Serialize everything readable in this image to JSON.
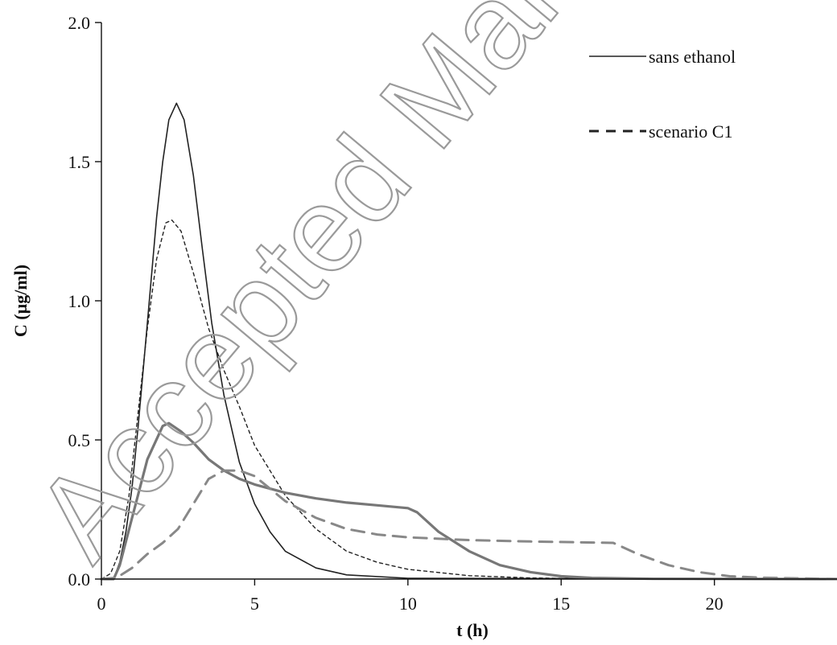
{
  "watermark": "Accepted Manuscript",
  "chart_data": {
    "type": "line",
    "xlabel": "t (h)",
    "ylabel": "C (µg/ml)",
    "xlim": [
      0,
      24
    ],
    "ylim": [
      0,
      2.0
    ],
    "xticks": [
      "0",
      "5",
      "10",
      "15",
      "20"
    ],
    "yticks": [
      "0.0",
      "0.5",
      "1.0",
      "1.5",
      "2.0"
    ],
    "grid": false,
    "legend_position": "top-right",
    "legend": [
      {
        "label": "sans ethanol",
        "style": "solid"
      },
      {
        "label": "scenario C1",
        "style": "dashed"
      }
    ],
    "series": [
      {
        "style": "solid",
        "color": "#222222",
        "width": 1.6,
        "points": [
          [
            0,
            0
          ],
          [
            0.4,
            0
          ],
          [
            0.6,
            0.06
          ],
          [
            0.8,
            0.17
          ],
          [
            1.0,
            0.33
          ],
          [
            1.2,
            0.55
          ],
          [
            1.5,
            0.92
          ],
          [
            1.8,
            1.3
          ],
          [
            2.0,
            1.5
          ],
          [
            2.2,
            1.65
          ],
          [
            2.45,
            1.71
          ],
          [
            2.7,
            1.65
          ],
          [
            3.0,
            1.45
          ],
          [
            3.3,
            1.18
          ],
          [
            3.6,
            0.92
          ],
          [
            4.0,
            0.66
          ],
          [
            4.5,
            0.42
          ],
          [
            5.0,
            0.27
          ],
          [
            5.5,
            0.17
          ],
          [
            6.0,
            0.1
          ],
          [
            7.0,
            0.04
          ],
          [
            8.0,
            0.015
          ],
          [
            10,
            0.003
          ],
          [
            24,
            0
          ]
        ]
      },
      {
        "style": "dotted",
        "color": "#222222",
        "width": 1.4,
        "points": [
          [
            0,
            0
          ],
          [
            0.3,
            0.02
          ],
          [
            0.6,
            0.1
          ],
          [
            0.9,
            0.3
          ],
          [
            1.2,
            0.6
          ],
          [
            1.5,
            0.9
          ],
          [
            1.8,
            1.15
          ],
          [
            2.1,
            1.28
          ],
          [
            2.3,
            1.29
          ],
          [
            2.6,
            1.25
          ],
          [
            3.0,
            1.1
          ],
          [
            3.5,
            0.9
          ],
          [
            4.0,
            0.75
          ],
          [
            4.5,
            0.62
          ],
          [
            5.0,
            0.48
          ],
          [
            6.0,
            0.3
          ],
          [
            7.0,
            0.18
          ],
          [
            8.0,
            0.1
          ],
          [
            9.0,
            0.06
          ],
          [
            10,
            0.035
          ],
          [
            12,
            0.012
          ],
          [
            14,
            0.004
          ],
          [
            16,
            0.001
          ],
          [
            24,
            0
          ]
        ]
      },
      {
        "style": "solid",
        "color": "#777777",
        "width": 3.2,
        "points": [
          [
            0,
            0
          ],
          [
            0.4,
            0
          ],
          [
            0.6,
            0.05
          ],
          [
            1.0,
            0.22
          ],
          [
            1.5,
            0.43
          ],
          [
            2.0,
            0.55
          ],
          [
            2.2,
            0.56
          ],
          [
            2.6,
            0.53
          ],
          [
            3.0,
            0.49
          ],
          [
            3.5,
            0.43
          ],
          [
            4.0,
            0.39
          ],
          [
            4.5,
            0.36
          ],
          [
            5.0,
            0.34
          ],
          [
            6.0,
            0.31
          ],
          [
            7.0,
            0.29
          ],
          [
            8.0,
            0.275
          ],
          [
            9.0,
            0.265
          ],
          [
            10.0,
            0.255
          ],
          [
            10.3,
            0.24
          ],
          [
            11.0,
            0.17
          ],
          [
            12.0,
            0.1
          ],
          [
            13.0,
            0.05
          ],
          [
            14.0,
            0.025
          ],
          [
            15.0,
            0.01
          ],
          [
            16.0,
            0.004
          ],
          [
            18,
            0.001
          ],
          [
            24,
            0
          ]
        ]
      },
      {
        "style": "dashed",
        "color": "#888888",
        "width": 3.0,
        "points": [
          [
            0,
            0
          ],
          [
            0.5,
            0.005
          ],
          [
            1.0,
            0.04
          ],
          [
            1.5,
            0.09
          ],
          [
            2.0,
            0.13
          ],
          [
            2.5,
            0.18
          ],
          [
            3.0,
            0.27
          ],
          [
            3.5,
            0.36
          ],
          [
            4.0,
            0.39
          ],
          [
            4.5,
            0.39
          ],
          [
            5.0,
            0.37
          ],
          [
            6.0,
            0.28
          ],
          [
            7.0,
            0.22
          ],
          [
            8.0,
            0.18
          ],
          [
            9.0,
            0.16
          ],
          [
            10.0,
            0.15
          ],
          [
            12.0,
            0.14
          ],
          [
            14.0,
            0.135
          ],
          [
            16.7,
            0.13
          ],
          [
            17.5,
            0.09
          ],
          [
            18.5,
            0.05
          ],
          [
            19.5,
            0.025
          ],
          [
            20.5,
            0.01
          ],
          [
            21.5,
            0.005
          ],
          [
            23,
            0.002
          ],
          [
            24,
            0
          ]
        ]
      }
    ]
  }
}
